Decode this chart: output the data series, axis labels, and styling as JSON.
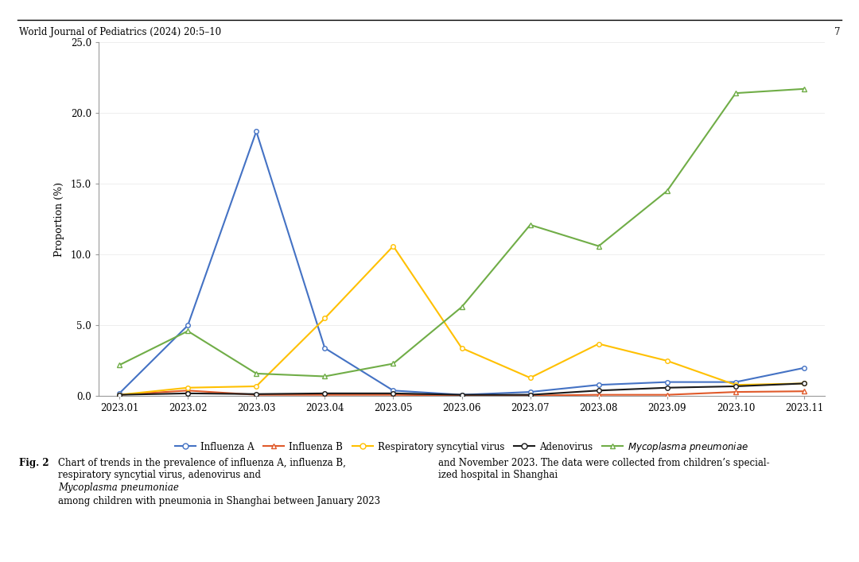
{
  "x_labels": [
    "2023.01",
    "2023.02",
    "2023.03",
    "2023.04",
    "2023.05",
    "2023.06",
    "2023.07",
    "2023.08",
    "2023.09",
    "2023.10",
    "2023.11"
  ],
  "series": {
    "Influenza A": {
      "values": [
        0.2,
        5.0,
        18.7,
        3.4,
        0.4,
        0.1,
        0.3,
        0.8,
        1.0,
        1.0,
        2.0
      ],
      "color": "#4472C4",
      "marker": "o",
      "linestyle": "-"
    },
    "Influenza B": {
      "values": [
        0.1,
        0.4,
        0.1,
        0.1,
        0.1,
        0.05,
        0.05,
        0.1,
        0.1,
        0.3,
        0.35
      ],
      "color": "#E05A2B",
      "marker": "^",
      "linestyle": "-"
    },
    "Respiratory syncytial virus": {
      "values": [
        0.1,
        0.6,
        0.7,
        5.5,
        10.6,
        3.4,
        1.3,
        3.7,
        2.5,
        0.8,
        0.9
      ],
      "color": "#FFC000",
      "marker": "o",
      "linestyle": "-"
    },
    "Adenovirus": {
      "values": [
        0.1,
        0.2,
        0.15,
        0.2,
        0.2,
        0.1,
        0.1,
        0.4,
        0.6,
        0.7,
        0.9
      ],
      "color": "#1A1A1A",
      "marker": "o",
      "linestyle": "-"
    },
    "Mycoplasma pneumoniae": {
      "values": [
        2.2,
        4.6,
        1.6,
        1.4,
        2.3,
        6.3,
        12.1,
        10.6,
        14.5,
        21.4,
        21.7
      ],
      "color": "#70AD47",
      "marker": "^",
      "linestyle": "-"
    }
  },
  "ylabel": "Proportion (%)",
  "ylim": [
    0,
    25.0
  ],
  "yticks": [
    0.0,
    5.0,
    10.0,
    15.0,
    20.0,
    25.0
  ],
  "header_text": "World Journal of Pediatrics (2024) 20:5–10",
  "page_number": "7",
  "background_color": "#FFFFFF"
}
